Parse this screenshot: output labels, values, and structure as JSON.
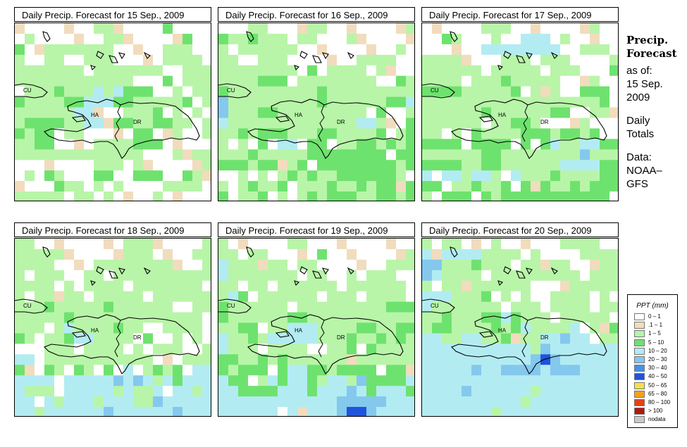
{
  "panels": [
    {
      "title": "Daily Precip. Forecast for  15 Sep., 2009"
    },
    {
      "title": "Daily Precip. Forecast for  16 Sep., 2009"
    },
    {
      "title": "Daily Precip. Forecast for  17 Sep., 2009"
    },
    {
      "title": "Daily Precip. Forecast for  18 Sep., 2009"
    },
    {
      "title": "Daily Precip. Forecast for  19 Sep., 2009"
    },
    {
      "title": "Daily Precip. Forecast for  20 Sep., 2009"
    }
  ],
  "map_labels": {
    "cu": "CU",
    "ha": "HA",
    "dr": "DR"
  },
  "side": {
    "heading1": "Precip.",
    "heading2": "Forecast",
    "asof": "as of:",
    "date1": "15 Sep.",
    "date2": "2009",
    "totals1": "Daily",
    "totals2": "Totals",
    "data1": "Data:",
    "data2": "NOAA–",
    "data3": "GFS"
  },
  "legend": {
    "title": "PPT (mm)",
    "items": [
      {
        "label": "0 – 1",
        "color": "#ffffff"
      },
      {
        "label": ".1 – 1",
        "color": "#f1dcbd"
      },
      {
        "label": "1 – 5",
        "color": "#b8f5a8"
      },
      {
        "label": "5 – 10",
        "color": "#6ee26e"
      },
      {
        "label": "10 – 20",
        "color": "#b2ecf2"
      },
      {
        "label": "20 – 30",
        "color": "#84c8ee"
      },
      {
        "label": "30 – 40",
        "color": "#4690ea"
      },
      {
        "label": "40 – 50",
        "color": "#1e54dc"
      },
      {
        "label": "50 – 65",
        "color": "#f8e048"
      },
      {
        "label": "65 – 80",
        "color": "#f5a21a"
      },
      {
        "label": "80 – 100",
        "color": "#e8420e"
      },
      {
        "label": "> 100",
        "color": "#b0180c"
      },
      {
        "label": "nodata",
        "color": "#c8c8c8"
      }
    ]
  },
  "grid_data": [
    [
      "........11.....5....",
      ".1.......11......5..",
      "5..1111111.....111..",
      "1..11..111.....1111.",
      "1111111.1111111..111",
      "111111111111...5.111",
      ".1115111f1f555..1.11",
      "5111155fff55111115.1",
      "111111ff...1115.1.1.",
      "1555511ff.55115511.1",
      "5155.11.....55..1..1",
      "1155....1111555.....",
      "1111111111111...1.11",
      "........111.1......1",
      ".1.51...55..555..51.",
      "....511.1.1....1111.",
      "11111.11.1....1....."
    ],
    [
      "...11....11........1",
      "5115111.11...1......",
      "1.111111..........1.",
      "11..111.......1111..",
      "11111111.5.1111.1...",
      "1111555.11111111..51",
      "51111111115111111111",
      "g111111111511111155f",
      "g11155111111111.5..1",
      "f1111111111111ff1..5",
      "11515551115511115.15",
      "1.1.5.ff.55.11551515",
      "11151111155555555.55",
      "555155.15.5555555515",
      "..1.1.1515115555551.",
      "1.15115.1115115155.5",
      "5.115.1.151555115515"
    ],
    [
      "......111........1..",
      "..51...1..fff.1.....",
      "......ffffffff..111.",
      "1111....111.111....1",
      "111111.11111.111...5",
      "1111.111511111...1..",
      "5555111115.1.1..555.",
      "1111111111111111115.",
      "111111511111155..11.",
      "111111.11551....1...",
      "11.1.5111155515515..",
      "5555.5555.5.5f11ff55",
      "1111115511111111g111",
      "55551155111111ffff55",
      "f.ff1ff1.f1115111155",
      "55.115115.5.51151555",
      "1.555.5155555555555."
    ],
    [
      "11.........111.....1",
      "11111......111....11",
      "1111....11111111...1",
      "1.111..11.1111111111",
      "1111.1.1111.1111111.",
      "1.11.11.11111.111111",
      "1115111115111111..11",
      "1111151111111111111.",
      "111.1f1111511..1111.",
      "51.115ff1111.5..1.1.",
      "...111.1111.1.111..1",
      "ff.11111111111...111",
      "5..51.51.5.f.1515.ff",
      "ffff.fffffgfgf1f5fff",
      "f111.fffff1f11f.ff1f",
      "ff.f1fff1fff11gfffff",
      "ff1ffffffgffffffgfff"
    ],
    [
      "1......11...........",
      "11.11.....5........1",
      "f111.11.11.......111",
      "f1111111.11..1.111..",
      "11.11.111111.111111.",
      "1f5.111111.111.1111.",
      "5111111.111111111555",
      "51111115511111111111",
      "1155.11fff1111551155",
      "f1151fffff1115115151",
      "f111.1111..115.51111",
      "5511515111111.111111",
      "51555.5ff5515555.55.",
      "f55.1f5ff51ff1g5555f",
      "ff5555fff5fffgf5fff5",
      "ffffffffffffgggggfff",
      "ffffff.f.fffgkkgffff"
    ],
    [
      "1.11...1......1111..",
      "f.ffff1111.1....1111",
      "gg1115111.11.11...11",
      "gf1111.111111111.111",
      "1.11.111111....11111",
      "fff1115.1.1..1111.1.",
      "f1111111.111.1111.11",
      "11511155f5111.11111.",
      "1551111515f1111f.1.5",
      "ff11ff115.11ffgff.11",
      "fffffffffff1gfffffff",
      "fffffffffffgkgffffff",
      "fffffgffggggfgggffff",
      "ffffffffffffffffffff",
      "ffffgffffff1ffffffff",
      "ffffffffff1fffffffff",
      "fffffff1ffffffffffff"
    ]
  ]
}
